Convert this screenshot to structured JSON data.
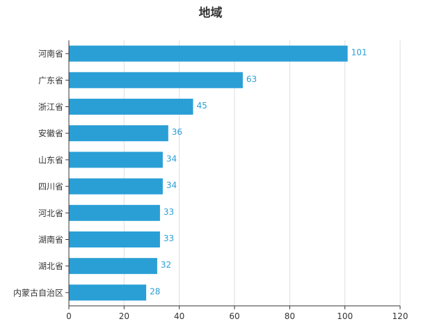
{
  "chart_data": {
    "type": "bar",
    "orientation": "horizontal",
    "title": "地域",
    "categories": [
      "河南省",
      "广东省",
      "浙江省",
      "安徽省",
      "山东省",
      "四川省",
      "河北省",
      "湖南省",
      "湖北省",
      "内蒙古自治区"
    ],
    "values": [
      101,
      63,
      45,
      36,
      34,
      34,
      33,
      33,
      32,
      28
    ],
    "x_ticks": [
      0,
      20,
      40,
      60,
      80,
      100,
      120
    ],
    "xlim": [
      0,
      120
    ],
    "xlabel": "",
    "ylabel": "",
    "grid": "vertical",
    "legend": "none",
    "colors": {
      "bar": "#2a9fd6",
      "label": "#2a9fd6",
      "grid": "#dddddd",
      "axis": "#333333"
    }
  }
}
